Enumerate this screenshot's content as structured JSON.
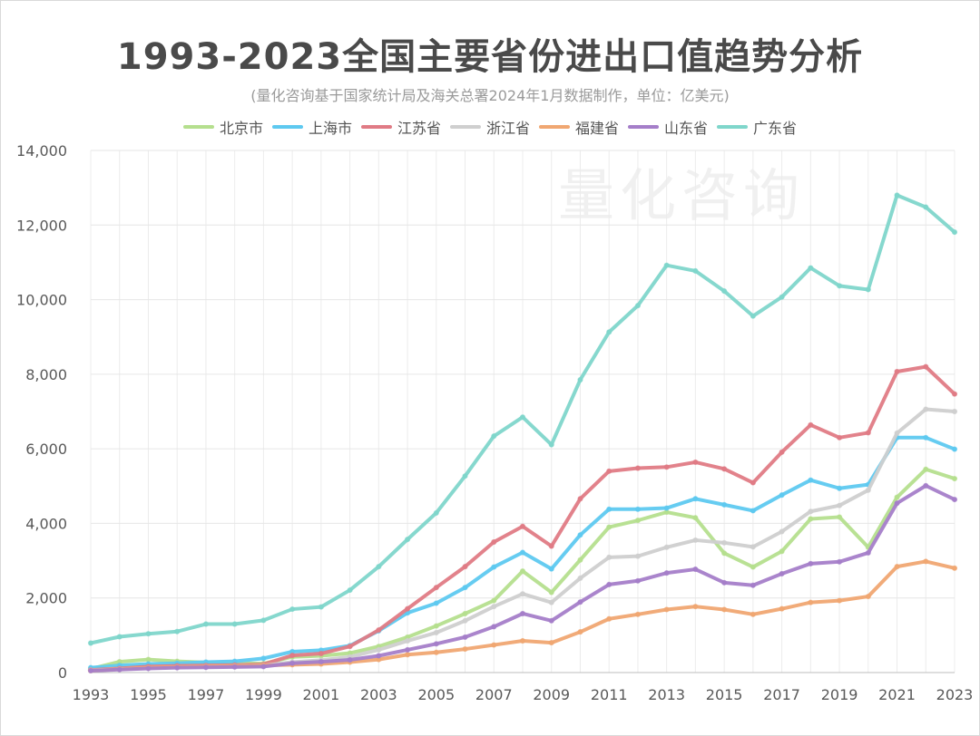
{
  "title": "1993-2023全国主要省份进出口值趋势分析",
  "subtitle": "(量化咨询基于国家统计局及海关总署2024年1月数据制作，单位：亿美元)",
  "watermark": "量化咨询",
  "chart_data": {
    "type": "line",
    "title": "1993-2023全国主要省份进出口值趋势分析",
    "xlabel": "",
    "ylabel": "",
    "ylim": [
      0,
      14000
    ],
    "yticks": [
      0,
      2000,
      4000,
      6000,
      8000,
      10000,
      12000,
      14000
    ],
    "ytick_labels": [
      "0",
      "2,000",
      "4,000",
      "6,000",
      "8,000",
      "10,000",
      "12,000",
      "14,000"
    ],
    "xtick_labels": [
      "1993",
      "1995",
      "1997",
      "1999",
      "2001",
      "2003",
      "2005",
      "2007",
      "2009",
      "2011",
      "2013",
      "2015",
      "2017",
      "2019",
      "2021",
      "2023"
    ],
    "grid": true,
    "legend_position": "top",
    "x": [
      1993,
      1994,
      1995,
      1996,
      1997,
      1998,
      1999,
      2000,
      2001,
      2002,
      2003,
      2004,
      2005,
      2006,
      2007,
      2008,
      2009,
      2010,
      2011,
      2012,
      2013,
      2014,
      2015,
      2016,
      2017,
      2018,
      2019,
      2020,
      2021,
      2022,
      2023
    ],
    "series": [
      {
        "name": "北京市",
        "color": "#b5df8e",
        "values": [
          100,
          290,
          350,
          300,
          270,
          250,
          240,
          420,
          450,
          520,
          700,
          950,
          1250,
          1580,
          1930,
          2720,
          2150,
          3020,
          3900,
          4080,
          4300,
          4150,
          3200,
          2830,
          3250,
          4120,
          4170,
          3360,
          4700,
          5450,
          5200
        ]
      },
      {
        "name": "上海市",
        "color": "#5ec9f0",
        "values": [
          130,
          190,
          230,
          250,
          280,
          300,
          380,
          560,
          600,
          720,
          1120,
          1600,
          1860,
          2280,
          2830,
          3220,
          2780,
          3690,
          4380,
          4380,
          4410,
          4660,
          4500,
          4340,
          4760,
          5160,
          4940,
          5040,
          6300,
          6300,
          5990
        ]
      },
      {
        "name": "江苏省",
        "color": "#e07b85",
        "values": [
          70,
          110,
          160,
          180,
          190,
          200,
          220,
          460,
          510,
          700,
          1140,
          1710,
          2280,
          2840,
          3500,
          3920,
          3390,
          4660,
          5400,
          5480,
          5510,
          5640,
          5460,
          5090,
          5910,
          6640,
          6300,
          6430,
          8070,
          8200,
          7470
        ]
      },
      {
        "name": "浙江省",
        "color": "#cfcfcf",
        "values": [
          60,
          90,
          120,
          140,
          160,
          170,
          190,
          280,
          330,
          420,
          610,
          850,
          1070,
          1390,
          1770,
          2110,
          1880,
          2530,
          3090,
          3120,
          3360,
          3550,
          3480,
          3370,
          3780,
          4320,
          4480,
          4890,
          6420,
          7060,
          7000
        ]
      },
      {
        "name": "福建省",
        "color": "#f0a772",
        "values": [
          50,
          90,
          130,
          150,
          160,
          170,
          190,
          210,
          230,
          280,
          350,
          480,
          540,
          630,
          740,
          850,
          800,
          1090,
          1440,
          1560,
          1690,
          1770,
          1690,
          1560,
          1710,
          1880,
          1930,
          2040,
          2840,
          2980,
          2800
        ]
      },
      {
        "name": "山东省",
        "color": "#a57ec9",
        "values": [
          50,
          80,
          110,
          130,
          140,
          150,
          160,
          250,
          290,
          340,
          450,
          610,
          770,
          950,
          1230,
          1580,
          1390,
          1890,
          2360,
          2460,
          2670,
          2770,
          2410,
          2340,
          2650,
          2920,
          2970,
          3210,
          4540,
          5010,
          4640
        ]
      },
      {
        "name": "广东省",
        "color": "#7fd6cb",
        "values": [
          790,
          960,
          1040,
          1100,
          1300,
          1300,
          1400,
          1700,
          1760,
          2210,
          2840,
          3570,
          4280,
          5270,
          6340,
          6850,
          6110,
          7850,
          9130,
          9840,
          10920,
          10770,
          10230,
          9560,
          10070,
          10850,
          10370,
          10270,
          12800,
          12480,
          11810
        ]
      }
    ]
  }
}
